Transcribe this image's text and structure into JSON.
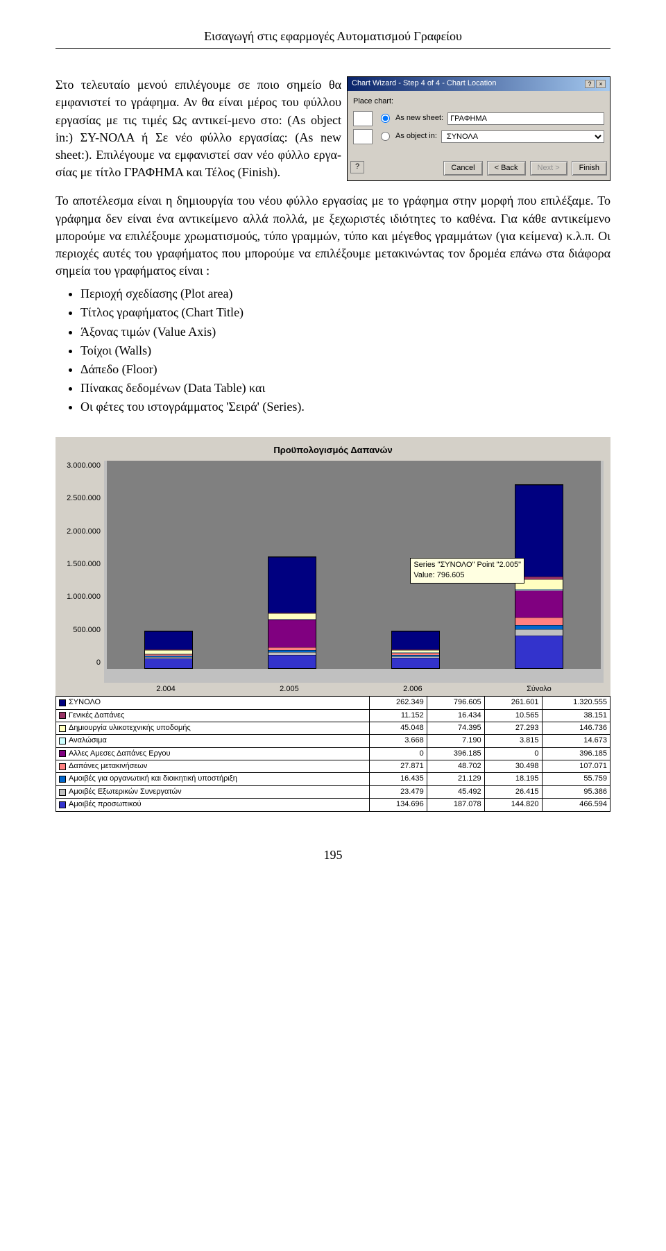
{
  "header": "Εισαγωγή στις εφαρμογές Αυτοματισμού Γραφείου",
  "para1": "Στο τελευταίο μενού επιλέγουμε σε ποιο σημείο θα εμφανιστεί το γράφημα. Αν θα είναι μέρος του φύλλου εργασίας με τις τιμές Ως αντικεί-μενο στο: (As object in:) ΣΥ-ΝΟΛΑ ή Σε νέο φύλλο εργασίας: (As new sheet:). Επιλέγουμε να εμφανιστεί σαν νέο φύλλο εργα-σίας με τίτλο ΓΡΑΦΗΜΑ και Τέλος (Finish).",
  "para2": "Το αποτέλεσμα είναι η δημιουργία του νέου φύλλο εργασίας με το γράφημα στην μορφή που επιλέξαμε. Το γράφημα δεν είναι ένα αντικείμενο αλλά πολλά, με ξεχωριστές ιδιότητες το καθένα. Για κάθε αντικείμενο μπορούμε να επιλέξουμε χρωματισμούς, τύπο γραμμών, τύπο και μέγεθος γραμμάτων (για κείμενα) κ.λ.π. Οι περιοχές αυτές του γραφήματος που μπορούμε να επιλέξουμε μετακινώντας τον δρομέα επάνω στα διάφορα σημεία του γραφήματος είναι :",
  "bullets": [
    "Περιοχή σχεδίασης (Plot area)",
    "Τίτλος γραφήματος (Chart Title)",
    "Άξονας τιμών (Value Axis)",
    "Τοίχοι (Walls)",
    "Δάπεδο (Floor)",
    "Πίνακας δεδομένων (Data Table) και",
    "Οι φέτες του ιστογράμματος 'Σειρά' (Series)."
  ],
  "wizard": {
    "title": "Chart Wizard - Step 4 of 4 - Chart Location",
    "place_label": "Place chart:",
    "opt_new": "As new sheet:",
    "opt_obj": "As object in:",
    "new_value": "ΓΡΑΦΗΜΑ",
    "obj_value": "ΣΥΝΟΛΑ",
    "btn_cancel": "Cancel",
    "btn_back": "< Back",
    "btn_next": "Next >",
    "btn_finish": "Finish"
  },
  "chart": {
    "title": "Προϋπολογισμός Δαπανών",
    "type": "stacked-bar-3d",
    "background": "#d4d0c8",
    "plot_bg": "#808080",
    "y_ticks": [
      "3.000.000",
      "2.500.000",
      "2.000.000",
      "1.500.000",
      "1.000.000",
      "500.000",
      "0"
    ],
    "y_max": 3000000,
    "categories": [
      "2.004",
      "2.005",
      "2.006",
      "Σύνολο"
    ],
    "tooltip_l1": "Series \"ΣΥΝΟΛΟ\" Point \"2.005\"",
    "tooltip_l2": "Value: 796.605",
    "series": [
      {
        "name": "ΣΥΝΟΛΟ",
        "color": "#000080",
        "values": [
          262349,
          796605,
          261601,
          1320555
        ]
      },
      {
        "name": "Γενικές Δαπάνες",
        "color": "#993366",
        "values": [
          11152,
          16434,
          10565,
          38151
        ]
      },
      {
        "name": "Δημιουργία υλικοτεχνικής υποδομής",
        "color": "#ffffc0",
        "values": [
          45048,
          74395,
          27293,
          146736
        ]
      },
      {
        "name": "Αναλώσιμα",
        "color": "#ccffff",
        "values": [
          3668,
          7190,
          3815,
          14673
        ]
      },
      {
        "name": "Αλλες Αμεσες Δαπάνες Εργου",
        "color": "#800080",
        "values": [
          0,
          396185,
          0,
          396185
        ]
      },
      {
        "name": "Δαπάνες μετακινήσεων",
        "color": "#ff8080",
        "values": [
          27871,
          48702,
          30498,
          107071
        ]
      },
      {
        "name": "Αμοιβές για οργανωτική και διοικητική υποστήριξη",
        "color": "#0066cc",
        "values": [
          16435,
          21129,
          18195,
          55759
        ]
      },
      {
        "name": "Αμοιβές Εξωτερικών Συνεργατών",
        "color": "#c0c0c0",
        "values": [
          23479,
          45492,
          26415,
          95386
        ]
      },
      {
        "name": "Αμοιβές προσωπικού",
        "color": "#3333cc",
        "values": [
          134696,
          187078,
          144820,
          466594
        ]
      }
    ],
    "table_rows": [
      [
        "ΣΥΝΟΛΟ",
        "262.349",
        "796.605",
        "261.601",
        "1.320.555"
      ],
      [
        "Γενικές Δαπάνες",
        "11.152",
        "16.434",
        "10.565",
        "38.151"
      ],
      [
        "Δημιουργία υλικοτεχνικής υποδομής",
        "45.048",
        "74.395",
        "27.293",
        "146.736"
      ],
      [
        "Αναλώσιμα",
        "3.668",
        "7.190",
        "3.815",
        "14.673"
      ],
      [
        "Αλλες Αμεσες Δαπάνες Εργου",
        "0",
        "396.185",
        "0",
        "396.185"
      ],
      [
        "Δαπάνες μετακινήσεων",
        "27.871",
        "48.702",
        "30.498",
        "107.071"
      ],
      [
        "Αμοιβές για οργανωτική και διοικητική υποστήριξη",
        "16.435",
        "21.129",
        "18.195",
        "55.759"
      ],
      [
        "Αμοιβές Εξωτερικών Συνεργατών",
        "23.479",
        "45.492",
        "26.415",
        "95.386"
      ],
      [
        "Αμοιβές προσωπικού",
        "134.696",
        "187.078",
        "144.820",
        "466.594"
      ]
    ]
  },
  "page_number": "195"
}
